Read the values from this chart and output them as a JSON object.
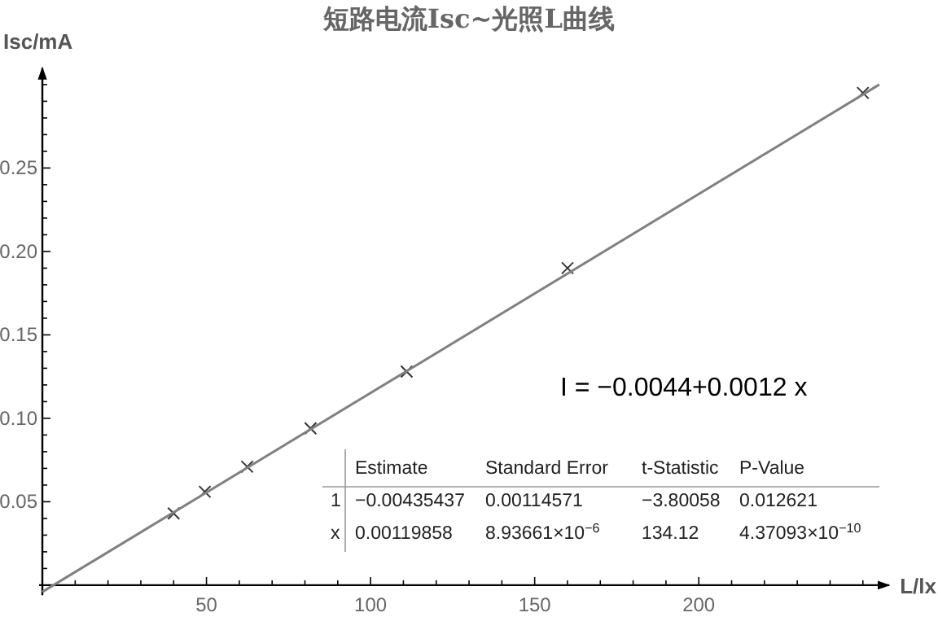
{
  "chart_data": {
    "type": "scatter",
    "title": "短路电流Isc~光照L曲线",
    "xlabel": "L/lx",
    "ylabel": "Isc/mA",
    "xlim": [
      -1,
      258
    ],
    "ylim": [
      -0.006,
      0.31
    ],
    "xticks": [
      {
        "value": 10,
        "label": null
      },
      {
        "value": 20,
        "label": null
      },
      {
        "value": 30,
        "label": null
      },
      {
        "value": 40,
        "label": null
      },
      50,
      {
        "value": 60,
        "label": null
      },
      {
        "value": 70,
        "label": null
      },
      {
        "value": 80,
        "label": null
      },
      {
        "value": 90,
        "label": null
      },
      100,
      {
        "value": 110,
        "label": null
      },
      {
        "value": 120,
        "label": null
      },
      {
        "value": 130,
        "label": null
      },
      {
        "value": 140,
        "label": null
      },
      150,
      {
        "value": 160,
        "label": null
      },
      {
        "value": 170,
        "label": null
      },
      {
        "value": 180,
        "label": null
      },
      {
        "value": 190,
        "label": null
      },
      200,
      {
        "value": 210,
        "label": null
      },
      {
        "value": 220,
        "label": null
      },
      {
        "value": 230,
        "label": null
      },
      {
        "value": 240,
        "label": null
      },
      {
        "value": 250,
        "label": null
      }
    ],
    "yticks": [
      {
        "value": 0.01,
        "label": null
      },
      {
        "value": 0.02,
        "label": null
      },
      {
        "value": 0.03,
        "label": null
      },
      {
        "value": 0.04,
        "label": null
      },
      0.05,
      {
        "value": 0.06,
        "label": null
      },
      {
        "value": 0.07,
        "label": null
      },
      {
        "value": 0.08,
        "label": null
      },
      {
        "value": 0.09,
        "label": null
      },
      {
        "value": 0.1,
        "label": "0.10"
      },
      {
        "value": 0.11,
        "label": null
      },
      {
        "value": 0.12,
        "label": null
      },
      {
        "value": 0.13,
        "label": null
      },
      {
        "value": 0.14,
        "label": null
      },
      0.15,
      {
        "value": 0.16,
        "label": null
      },
      {
        "value": 0.17,
        "label": null
      },
      {
        "value": 0.18,
        "label": null
      },
      {
        "value": 0.19,
        "label": null
      },
      {
        "value": 0.2,
        "label": "0.20"
      },
      {
        "value": 0.21,
        "label": null
      },
      {
        "value": 0.22,
        "label": null
      },
      {
        "value": 0.23,
        "label": null
      },
      {
        "value": 0.24,
        "label": null
      },
      0.25,
      {
        "value": 0.26,
        "label": null
      },
      {
        "value": 0.27,
        "label": null
      },
      {
        "value": 0.28,
        "label": null
      },
      {
        "value": 0.29,
        "label": null
      },
      {
        "value": 0.3,
        "label": null
      }
    ],
    "grid": false,
    "marker": "cross",
    "series": [
      {
        "color": "#333333",
        "x": [
          40,
          49.5,
          62.4,
          81.7,
          111,
          160,
          250
        ],
        "values": [
          0.043,
          0.056,
          0.071,
          0.094,
          0.128,
          0.19,
          0.295
        ]
      },
      {
        "type": "line",
        "color": "#808080",
        "marker": "none",
        "x": [
          0,
          255
        ],
        "values": [
          -0.004,
          0.3
        ]
      }
    ],
    "annotations": [
      "I = −0.0044+0.0012 x",
      "Estimate",
      "Standard Error",
      "t-Statistic",
      "P-Value",
      "1",
      "−0.00435437",
      "0.00114571",
      "−3.80058",
      "0.012621",
      "x",
      "0.00119858",
      "8.93661×10$^{−6}$",
      "134.12",
      "4.37093×10$^{−10}$"
    ]
  }
}
